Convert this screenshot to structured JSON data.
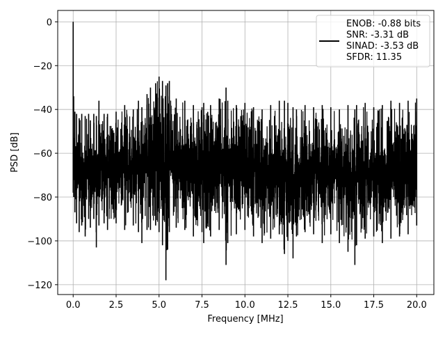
{
  "chart_data": {
    "type": "line",
    "title": "",
    "xlabel": "Frequency [MHz]",
    "ylabel": "PSD [dB]",
    "xlim": [
      -0.9,
      21.0
    ],
    "ylim": [
      -124.5,
      5.2
    ],
    "xticks": [
      0.0,
      2.5,
      5.0,
      7.5,
      10.0,
      12.5,
      15.0,
      17.5,
      20.0
    ],
    "xtick_labels": [
      "0.0",
      "2.5",
      "5.0",
      "7.5",
      "10.0",
      "12.5",
      "15.0",
      "17.5",
      "20.0"
    ],
    "yticks": [
      0,
      -20,
      -40,
      -60,
      -80,
      -100,
      -120
    ],
    "ytick_labels": [
      "0",
      "−20",
      "−40",
      "−60",
      "−80",
      "−100",
      "−120"
    ],
    "grid": true,
    "legend_position": "top-right",
    "line_color": "#000000",
    "series": [
      {
        "name": "ENOB: -0.88 bits\nSNR: -3.31 dB\nSINAD: -3.53 dB\nSFDR: 11.35",
        "x": [
          0.0,
          0.03,
          0.1,
          0.2,
          0.35,
          0.5,
          0.7,
          0.9,
          1.0,
          1.2,
          1.35,
          1.5,
          1.8,
          2.0,
          2.5,
          3.0,
          3.5,
          3.8,
          4.0,
          4.3,
          4.5,
          4.8,
          5.0,
          5.2,
          5.4,
          5.5,
          5.6,
          6.0,
          6.5,
          7.0,
          7.5,
          7.6,
          8.0,
          8.5,
          8.9,
          9.0,
          9.5,
          10.0,
          10.5,
          11.0,
          11.5,
          12.0,
          12.3,
          12.5,
          12.8,
          13.0,
          13.5,
          14.0,
          14.5,
          15.0,
          15.5,
          16.0,
          16.4,
          16.5,
          17.0,
          17.5,
          18.0,
          18.5,
          19.0,
          19.5,
          20.0
        ],
        "y_max": [
          0,
          -34,
          -41,
          -42,
          -44,
          -42,
          -43,
          -42,
          -45,
          -42,
          -43,
          -36,
          -42,
          -42,
          -41,
          -38,
          -40,
          -36,
          -39,
          -33,
          -30,
          -28,
          -25,
          -27,
          -29,
          -28,
          -27,
          -35,
          -36,
          -38,
          -39,
          -37,
          -38,
          -35,
          -30,
          -36,
          -38,
          -37,
          -39,
          -40,
          -38,
          -36,
          -36,
          -37,
          -39,
          -40,
          -38,
          -39,
          -38,
          -39,
          -40,
          -38,
          -40,
          -38,
          -37,
          -39,
          -38,
          -36,
          -37,
          -36,
          -35
        ],
        "y_min": [
          -78,
          -80,
          -87,
          -92,
          -96,
          -93,
          -98,
          -90,
          -94,
          -90,
          -103,
          -93,
          -92,
          -95,
          -92,
          -95,
          -93,
          -96,
          -101,
          -95,
          -95,
          -93,
          -96,
          -102,
          -118,
          -104,
          -96,
          -94,
          -95,
          -98,
          -96,
          -101,
          -98,
          -95,
          -111,
          -101,
          -97,
          -95,
          -98,
          -101,
          -99,
          -97,
          -106,
          -100,
          -108,
          -98,
          -96,
          -97,
          -101,
          -97,
          -101,
          -105,
          -111,
          -102,
          -99,
          -98,
          -101,
          -99,
          -98,
          -97,
          -93
        ]
      }
    ]
  }
}
